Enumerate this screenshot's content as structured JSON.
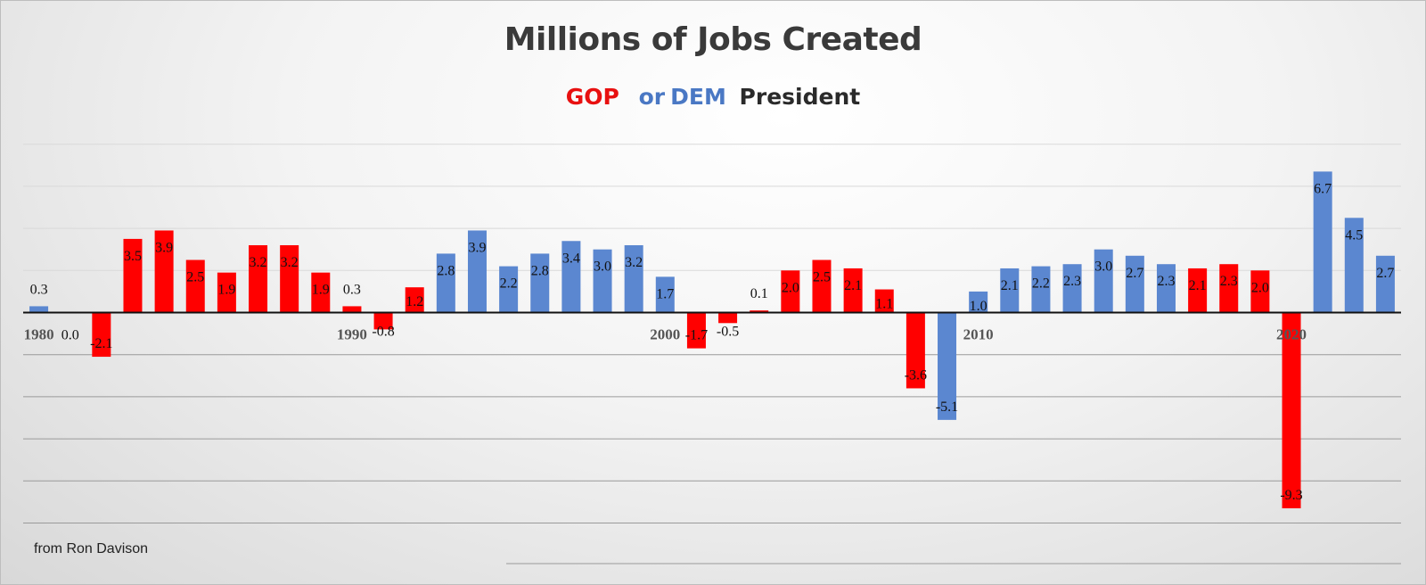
{
  "chart_data": {
    "type": "bar",
    "title": "Millions of Jobs Created",
    "subtitle": {
      "gop": "GOP",
      "or": "or",
      "dem": "DEM",
      "president": "President"
    },
    "footer": "from Ron Davison",
    "x_tick_labels": [
      "1980",
      "1990",
      "2000",
      "2010",
      "2020"
    ],
    "years": [
      1980,
      1981,
      1982,
      1983,
      1984,
      1985,
      1986,
      1987,
      1988,
      1989,
      1990,
      1991,
      1992,
      1993,
      1994,
      1995,
      1996,
      1997,
      1998,
      1999,
      2000,
      2001,
      2002,
      2003,
      2004,
      2005,
      2006,
      2007,
      2008,
      2009,
      2010,
      2011,
      2012,
      2013,
      2014,
      2015,
      2016,
      2017,
      2018,
      2019,
      2020,
      2021,
      2022,
      2023
    ],
    "values": [
      0.3,
      0.0,
      -2.1,
      3.5,
      3.9,
      2.5,
      1.9,
      3.2,
      3.2,
      1.9,
      0.3,
      -0.8,
      1.2,
      2.8,
      3.9,
      2.2,
      2.8,
      3.4,
      3.0,
      3.2,
      1.7,
      -1.7,
      -0.5,
      0.1,
      2.0,
      2.5,
      2.1,
      1.1,
      -3.6,
      -5.1,
      1.0,
      2.1,
      2.2,
      2.3,
      3.0,
      2.7,
      2.3,
      2.1,
      2.3,
      2.0,
      -9.3,
      6.7,
      4.5,
      2.7
    ],
    "labels": [
      "0.3",
      "0.0",
      "-2.1",
      "3.5",
      "3.9",
      "2.5",
      "1.9",
      "3.2",
      "3.2",
      "1.9",
      "0.3",
      "-0.8",
      "1.2",
      "2.8",
      "3.9",
      "2.2",
      "2.8",
      "3.4",
      "3.0",
      "3.2",
      "1.7",
      "-1.7",
      "-0.5",
      "0.1",
      "2.0",
      "2.5",
      "2.1",
      "1.1",
      "-3.6",
      "-5.1",
      "1.0",
      "2.1",
      "2.2",
      "2.3",
      "3.0",
      "2.7",
      "2.3",
      "2.1",
      "2.3",
      "2.0",
      "-9.3",
      "6.7",
      "4.5",
      "2.7"
    ],
    "party": [
      "DEM",
      "DEM",
      "GOP",
      "GOP",
      "GOP",
      "GOP",
      "GOP",
      "GOP",
      "GOP",
      "GOP",
      "GOP",
      "GOP",
      "GOP",
      "DEM",
      "DEM",
      "DEM",
      "DEM",
      "DEM",
      "DEM",
      "DEM",
      "DEM",
      "GOP",
      "GOP",
      "GOP",
      "GOP",
      "GOP",
      "GOP",
      "GOP",
      "GOP",
      "DEM",
      "DEM",
      "DEM",
      "DEM",
      "DEM",
      "DEM",
      "DEM",
      "DEM",
      "GOP",
      "GOP",
      "GOP",
      "GOP",
      "DEM",
      "DEM",
      "DEM"
    ],
    "colors": {
      "GOP": "#ff0000",
      "DEM": "#5b87d0",
      "gop_text": "#e81010",
      "dem_text": "#4a78c4",
      "president_text": "#2a2a2a"
    },
    "ylim": [
      -10,
      8
    ],
    "grid": true
  }
}
